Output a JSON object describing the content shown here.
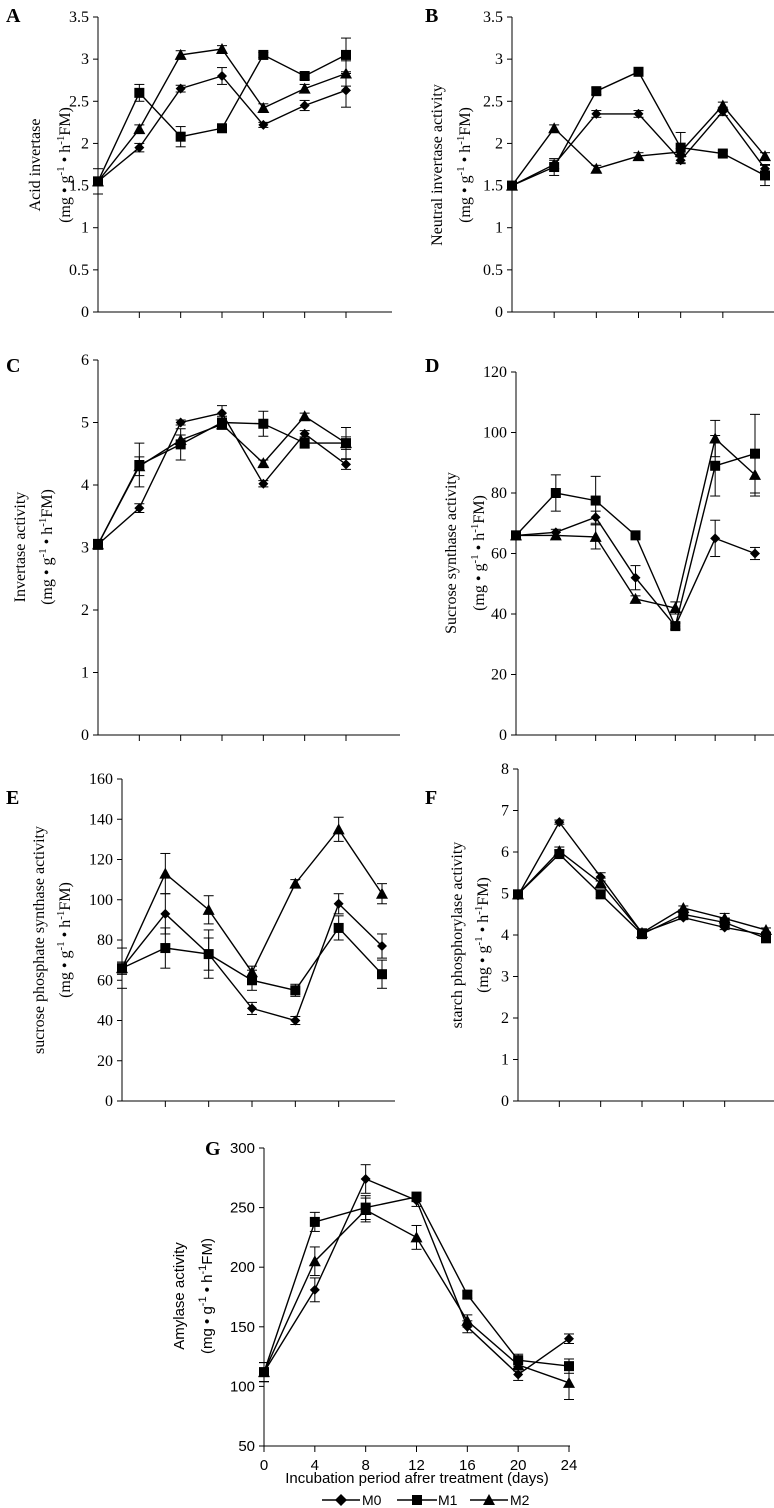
{
  "chart_data": [
    {
      "type": "line",
      "panel": "A",
      "ylabel": "Acid invertase",
      "ylabel_units": "(mg • g-1 • h-1FM)",
      "ylim": [
        0,
        3.5
      ],
      "ytick_step": 0.5,
      "yticks": [
        "0",
        "0.5",
        "1",
        "1.5",
        "2",
        "2.5",
        "3",
        "3.5"
      ],
      "x": [
        0,
        4,
        8,
        12,
        16,
        20,
        24
      ],
      "series": [
        {
          "name": "M0",
          "values": [
            1.55,
            1.95,
            2.65,
            2.8,
            2.22,
            2.45,
            2.63
          ],
          "errors": [
            0.05,
            0.05,
            0.04,
            0.1,
            0.03,
            0.06,
            0.2
          ]
        },
        {
          "name": "M1",
          "values": [
            1.55,
            2.6,
            2.08,
            2.18,
            3.05,
            2.8,
            3.05
          ],
          "errors": [
            0.15,
            0.1,
            0.12,
            0.04,
            0.03,
            0.04,
            0.2
          ]
        },
        {
          "name": "M2",
          "values": [
            1.55,
            2.17,
            3.05,
            3.12,
            2.42,
            2.65,
            2.83
          ],
          "errors": [
            0.05,
            0.05,
            0.05,
            0.04,
            0.05,
            0.05,
            0.15
          ]
        }
      ]
    },
    {
      "type": "line",
      "panel": "B",
      "ylabel": "Neutral invertase activity",
      "ylabel_units": "(mg • g-1 • h-1FM)",
      "ylim": [
        0,
        3.5
      ],
      "ytick_step": 0.5,
      "yticks": [
        "0",
        "0.5",
        "1",
        "1.5",
        "2",
        "2.5",
        "3",
        "3.5"
      ],
      "x": [
        0,
        4,
        8,
        12,
        16,
        20,
        24
      ],
      "series": [
        {
          "name": "M0",
          "values": [
            1.5,
            1.75,
            2.35,
            2.35,
            1.8,
            2.38,
            1.7
          ],
          "errors": [
            0.03,
            0.05,
            0.04,
            0.04,
            0.04,
            0.05,
            0.05
          ]
        },
        {
          "name": "M1",
          "values": [
            1.5,
            1.72,
            2.62,
            2.85,
            1.95,
            1.88,
            1.62
          ],
          "errors": [
            0.03,
            0.1,
            0.04,
            0.04,
            0.18,
            0.03,
            0.12
          ]
        },
        {
          "name": "M2",
          "values": [
            1.5,
            2.18,
            1.7,
            1.85,
            1.9,
            2.45,
            1.85
          ],
          "errors": [
            0.03,
            0.04,
            0.04,
            0.04,
            0.04,
            0.04,
            0.04
          ]
        }
      ]
    },
    {
      "type": "line",
      "panel": "C",
      "ylabel": "Invertase activity",
      "ylabel_units": "(mg • g-1 • h-1FM)",
      "ylim": [
        0,
        6
      ],
      "ytick_step": 1,
      "yticks": [
        "0",
        "1",
        "2",
        "3",
        "4",
        "5",
        "6"
      ],
      "x": [
        0,
        4,
        8,
        12,
        16,
        20,
        24
      ],
      "series": [
        {
          "name": "M0",
          "values": [
            3.05,
            3.63,
            5.0,
            5.15,
            4.02,
            4.82,
            4.33
          ],
          "errors": [
            0.05,
            0.07,
            0.04,
            0.12,
            0.05,
            0.05,
            0.08
          ]
        },
        {
          "name": "M1",
          "values": [
            3.05,
            4.32,
            4.65,
            5.0,
            4.98,
            4.67,
            4.67
          ],
          "errors": [
            0.08,
            0.35,
            0.25,
            0.1,
            0.2,
            0.08,
            0.25
          ]
        },
        {
          "name": "M2",
          "values": [
            3.05,
            4.3,
            4.72,
            4.97,
            4.35,
            5.1,
            4.67
          ],
          "errors": [
            0.05,
            0.15,
            0.08,
            0.08,
            0.05,
            0.05,
            0.1
          ]
        }
      ]
    },
    {
      "type": "line",
      "panel": "D",
      "ylabel": "Sucrose synthase activity",
      "ylabel_units": "(mg • g-1 • h-1FM)",
      "ylim": [
        0,
        120
      ],
      "ytick_step": 20,
      "yticks": [
        "0",
        "20",
        "40",
        "60",
        "80",
        "100",
        "120"
      ],
      "x": [
        0,
        4,
        8,
        12,
        16,
        20,
        24
      ],
      "series": [
        {
          "name": "M0",
          "values": [
            66,
            67,
            72,
            52,
            36,
            65,
            60
          ],
          "errors": [
            1,
            1,
            2,
            4,
            1,
            6,
            2
          ]
        },
        {
          "name": "M1",
          "values": [
            66,
            80,
            77.5,
            66,
            36,
            89,
            93
          ],
          "errors": [
            1,
            6,
            8,
            1,
            1,
            10,
            13
          ]
        },
        {
          "name": "M2",
          "values": [
            66,
            66,
            65.5,
            45,
            42,
            98,
            86
          ],
          "errors": [
            1,
            1,
            4,
            1,
            2,
            6,
            7
          ]
        }
      ]
    },
    {
      "type": "line",
      "panel": "E",
      "ylabel": "sucrose phosphate synthase activity",
      "ylabel_units": "(mg • g-1 • h-1FM)",
      "ylim": [
        0,
        160
      ],
      "ytick_step": 20,
      "yticks": [
        "0",
        "20",
        "40",
        "60",
        "80",
        "100",
        "120",
        "140",
        "160"
      ],
      "x": [
        0,
        4,
        8,
        12,
        16,
        20,
        24
      ],
      "series": [
        {
          "name": "M0",
          "values": [
            66,
            93,
            73,
            46,
            40,
            98,
            77
          ],
          "errors": [
            3,
            10,
            8,
            3,
            2,
            5,
            6
          ]
        },
        {
          "name": "M1",
          "values": [
            66,
            76,
            73,
            60,
            55,
            86,
            63
          ],
          "errors": [
            10,
            10,
            12,
            5,
            3,
            6,
            7
          ]
        },
        {
          "name": "M2",
          "values": [
            66,
            113,
            95,
            64,
            108,
            135,
            103
          ],
          "errors": [
            3,
            10,
            7,
            3,
            2,
            6,
            5
          ]
        }
      ]
    },
    {
      "type": "line",
      "panel": "F",
      "ylabel": "starch  phosphorylase  activity",
      "ylabel_units": "(mg • g-1 • h-1FM)",
      "ylim": [
        0,
        8
      ],
      "ytick_step": 1,
      "yticks": [
        "0",
        "1",
        "2",
        "3",
        "4",
        "5",
        "6",
        "7",
        "8"
      ],
      "x": [
        0,
        4,
        8,
        12,
        16,
        20,
        24
      ],
      "series": [
        {
          "name": "M0",
          "values": [
            4.95,
            6.72,
            5.4,
            4.05,
            4.42,
            4.18,
            4.0
          ],
          "errors": [
            0.05,
            0.05,
            0.1,
            0.1,
            0.05,
            0.05,
            0.05
          ]
        },
        {
          "name": "M1",
          "values": [
            4.98,
            5.95,
            4.98,
            4.02,
            4.5,
            4.3,
            3.92
          ],
          "errors": [
            0.05,
            0.1,
            0.08,
            0.08,
            0.08,
            0.1,
            0.05
          ]
        },
        {
          "name": "M2",
          "values": [
            4.98,
            6.02,
            5.25,
            4.05,
            4.65,
            4.4,
            4.12
          ],
          "errors": [
            0.05,
            0.1,
            0.12,
            0.08,
            0.05,
            0.12,
            0.05
          ]
        }
      ]
    },
    {
      "type": "line",
      "panel": "G",
      "ylabel": "Amylase activity",
      "ylabel_units": "(mg • g-1 • h-1FM)",
      "ylim": [
        50,
        300
      ],
      "ytick_step": 50,
      "yticks": [
        "50",
        "100",
        "150",
        "200",
        "250",
        "300"
      ],
      "x": [
        0,
        4,
        8,
        12,
        16,
        20,
        24
      ],
      "xticks": [
        "0",
        "4",
        "8",
        "12",
        "16",
        "20",
        "24"
      ],
      "xlabel": "Incubation period afrer treatment (days)",
      "series": [
        {
          "name": "M0",
          "values": [
            112,
            181,
            274,
            256,
            150,
            110,
            140
          ],
          "errors": [
            8,
            10,
            12,
            5,
            5,
            5,
            4
          ]
        },
        {
          "name": "M1",
          "values": [
            112,
            238,
            250,
            259,
            177,
            122,
            117
          ],
          "errors": [
            8,
            8,
            10,
            4,
            3,
            5,
            6
          ]
        },
        {
          "name": "M2",
          "values": [
            112,
            205,
            248,
            225,
            155,
            118,
            103
          ],
          "errors": [
            8,
            12,
            10,
            10,
            5,
            5,
            14
          ]
        }
      ]
    }
  ],
  "legend": [
    {
      "name": "M0",
      "marker": "diamond"
    },
    {
      "name": "M1",
      "marker": "square"
    },
    {
      "name": "M2",
      "marker": "triangle"
    }
  ]
}
